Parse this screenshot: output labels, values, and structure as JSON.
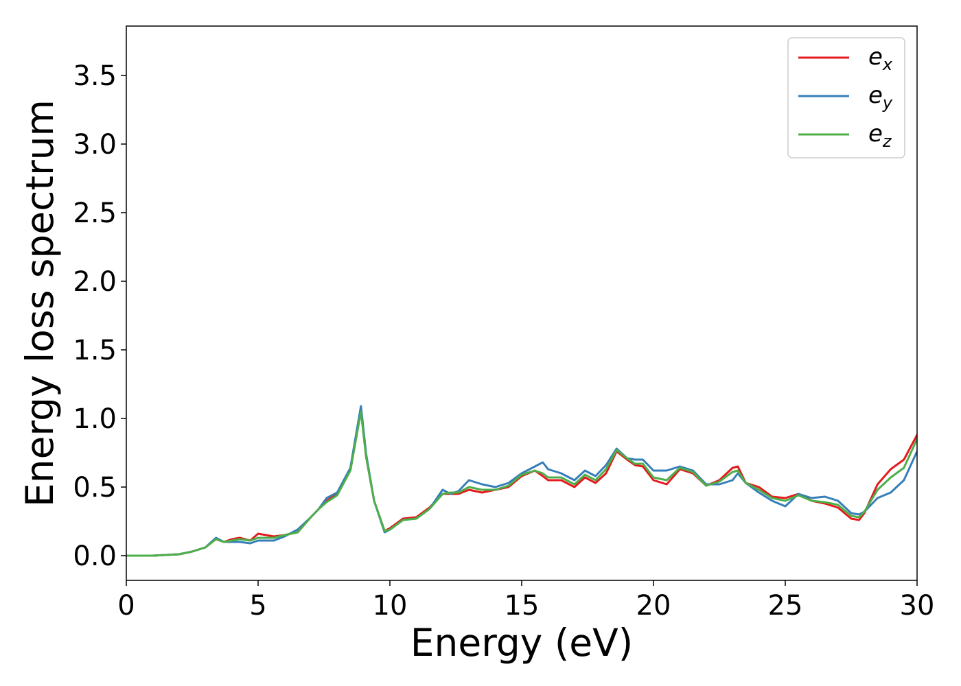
{
  "chart_data": {
    "type": "line",
    "title": "",
    "xlabel": "Energy (eV)",
    "ylabel": "Energy loss spectrum",
    "xlim": [
      0,
      30
    ],
    "ylim": [
      -0.18,
      3.86
    ],
    "xticks": [
      "0",
      "5",
      "10",
      "15",
      "20",
      "25",
      "30"
    ],
    "yticks": [
      "0.0",
      "0.5",
      "1.0",
      "1.5",
      "2.0",
      "2.5",
      "3.0",
      "3.5"
    ],
    "grid": false,
    "legend_position": "top-right",
    "x": [
      0,
      1,
      2,
      2.5,
      3,
      3.4,
      3.7,
      4,
      4.3,
      4.7,
      5,
      5.3,
      5.6,
      6,
      6.5,
      7,
      7.3,
      7.6,
      8,
      8.5,
      8.9,
      9.1,
      9.4,
      9.8,
      10,
      10.5,
      11,
      11.5,
      12,
      12.3,
      12.6,
      13,
      13.5,
      14,
      14.5,
      15,
      15.5,
      15.8,
      16,
      16.5,
      17,
      17.4,
      17.8,
      18.2,
      18.6,
      19,
      19.3,
      19.6,
      20,
      20.5,
      21,
      21.5,
      22,
      22.5,
      23,
      23.2,
      23.5,
      24,
      24.5,
      25,
      25.5,
      26,
      26.5,
      27,
      27.5,
      27.8,
      28,
      28.5,
      29,
      29.5,
      30
    ],
    "series": [
      {
        "name": "e",
        "subscript": "x",
        "color": "#e41a1c",
        "values": [
          0,
          0,
          0.01,
          0.03,
          0.06,
          0.12,
          0.1,
          0.12,
          0.13,
          0.11,
          0.16,
          0.15,
          0.14,
          0.15,
          0.17,
          0.28,
          0.34,
          0.4,
          0.45,
          0.62,
          1.06,
          0.72,
          0.4,
          0.18,
          0.2,
          0.27,
          0.28,
          0.35,
          0.45,
          0.45,
          0.45,
          0.48,
          0.46,
          0.48,
          0.5,
          0.58,
          0.62,
          0.58,
          0.55,
          0.55,
          0.5,
          0.57,
          0.53,
          0.6,
          0.76,
          0.7,
          0.66,
          0.65,
          0.55,
          0.52,
          0.63,
          0.6,
          0.51,
          0.55,
          0.64,
          0.65,
          0.53,
          0.5,
          0.43,
          0.42,
          0.45,
          0.4,
          0.38,
          0.35,
          0.27,
          0.26,
          0.31,
          0.52,
          0.63,
          0.7,
          0.88
        ]
      },
      {
        "name": "e",
        "subscript": "y",
        "color": "#377eb8",
        "values": [
          0,
          0,
          0.01,
          0.03,
          0.06,
          0.13,
          0.1,
          0.1,
          0.1,
          0.09,
          0.11,
          0.11,
          0.11,
          0.14,
          0.19,
          0.28,
          0.34,
          0.42,
          0.46,
          0.64,
          1.09,
          0.74,
          0.4,
          0.17,
          0.19,
          0.26,
          0.27,
          0.34,
          0.48,
          0.45,
          0.47,
          0.55,
          0.52,
          0.5,
          0.53,
          0.6,
          0.65,
          0.68,
          0.63,
          0.6,
          0.55,
          0.62,
          0.58,
          0.66,
          0.78,
          0.71,
          0.7,
          0.7,
          0.62,
          0.62,
          0.65,
          0.62,
          0.52,
          0.52,
          0.55,
          0.6,
          0.53,
          0.46,
          0.4,
          0.36,
          0.45,
          0.42,
          0.43,
          0.4,
          0.31,
          0.3,
          0.32,
          0.42,
          0.46,
          0.55,
          0.76
        ]
      },
      {
        "name": "e",
        "subscript": "z",
        "color": "#4daf4a",
        "values": [
          0,
          0,
          0.01,
          0.03,
          0.06,
          0.12,
          0.1,
          0.11,
          0.12,
          0.11,
          0.13,
          0.13,
          0.13,
          0.15,
          0.17,
          0.28,
          0.34,
          0.39,
          0.44,
          0.62,
          1.05,
          0.72,
          0.4,
          0.18,
          0.19,
          0.26,
          0.27,
          0.34,
          0.45,
          0.46,
          0.46,
          0.5,
          0.48,
          0.48,
          0.51,
          0.59,
          0.62,
          0.6,
          0.57,
          0.57,
          0.52,
          0.59,
          0.55,
          0.63,
          0.77,
          0.71,
          0.67,
          0.67,
          0.57,
          0.55,
          0.64,
          0.61,
          0.51,
          0.54,
          0.61,
          0.62,
          0.53,
          0.48,
          0.42,
          0.4,
          0.44,
          0.4,
          0.39,
          0.37,
          0.29,
          0.28,
          0.32,
          0.48,
          0.57,
          0.64,
          0.85
        ]
      }
    ]
  }
}
